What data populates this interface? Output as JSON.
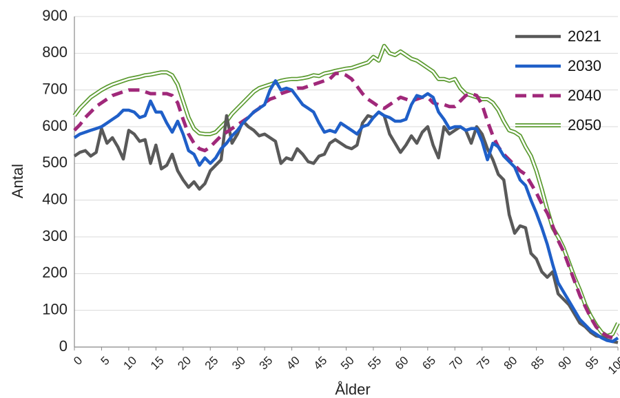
{
  "chart_data": {
    "type": "line",
    "title": "",
    "xlabel": "Ålder",
    "ylabel": "Antal",
    "xlim": [
      0,
      100
    ],
    "ylim": [
      0,
      900
    ],
    "y_ticks": [
      "0",
      "100",
      "200",
      "300",
      "400",
      "500",
      "600",
      "700",
      "800",
      "900"
    ],
    "x_ticks": [
      "0",
      "5",
      "10",
      "15",
      "20",
      "25",
      "30",
      "35",
      "40",
      "45",
      "50",
      "55",
      "60",
      "65",
      "70",
      "75",
      "80",
      "85",
      "90",
      "95",
      "100"
    ],
    "grid": "horizontal",
    "legend_position": "top-right",
    "series": [
      {
        "name": "2021",
        "color": "#595959",
        "style": "solid",
        "x": [
          0,
          1,
          2,
          3,
          4,
          5,
          6,
          7,
          8,
          9,
          10,
          11,
          12,
          13,
          14,
          15,
          16,
          17,
          18,
          19,
          20,
          21,
          22,
          23,
          24,
          25,
          26,
          27,
          28,
          29,
          30,
          31,
          32,
          33,
          34,
          35,
          36,
          37,
          38,
          39,
          40,
          41,
          42,
          43,
          44,
          45,
          46,
          47,
          48,
          49,
          50,
          51,
          52,
          53,
          54,
          55,
          56,
          57,
          58,
          59,
          60,
          61,
          62,
          63,
          64,
          65,
          66,
          67,
          68,
          69,
          70,
          71,
          72,
          73,
          74,
          75,
          76,
          77,
          78,
          79,
          80,
          81,
          82,
          83,
          84,
          85,
          86,
          87,
          88,
          89,
          90,
          91,
          92,
          93,
          94,
          95,
          96,
          97,
          98,
          99,
          100
        ],
        "values": [
          520,
          530,
          535,
          520,
          530,
          595,
          555,
          570,
          545,
          512,
          590,
          580,
          560,
          565,
          500,
          550,
          485,
          495,
          525,
          480,
          455,
          435,
          450,
          430,
          445,
          480,
          495,
          510,
          630,
          555,
          580,
          615,
          600,
          590,
          575,
          580,
          570,
          560,
          500,
          515,
          510,
          540,
          525,
          505,
          500,
          520,
          525,
          555,
          565,
          555,
          545,
          540,
          550,
          610,
          630,
          625,
          640,
          630,
          580,
          555,
          530,
          550,
          575,
          555,
          585,
          600,
          550,
          515,
          600,
          580,
          590,
          600,
          590,
          555,
          600,
          580,
          540,
          510,
          470,
          455,
          360,
          310,
          330,
          325,
          255,
          240,
          205,
          190,
          205,
          145,
          130,
          115,
          90,
          65,
          55,
          40,
          30,
          28,
          20,
          15,
          12
        ]
      },
      {
        "name": "2030",
        "color": "#1f5fc8",
        "style": "solid",
        "x": [
          0,
          1,
          2,
          3,
          4,
          5,
          6,
          7,
          8,
          9,
          10,
          11,
          12,
          13,
          14,
          15,
          16,
          17,
          18,
          19,
          20,
          21,
          22,
          23,
          24,
          25,
          26,
          27,
          28,
          29,
          30,
          31,
          32,
          33,
          34,
          35,
          36,
          37,
          38,
          39,
          40,
          41,
          42,
          43,
          44,
          45,
          46,
          47,
          48,
          49,
          50,
          51,
          52,
          53,
          54,
          55,
          56,
          57,
          58,
          59,
          60,
          61,
          62,
          63,
          64,
          65,
          66,
          67,
          68,
          69,
          70,
          71,
          72,
          73,
          74,
          75,
          76,
          77,
          78,
          79,
          80,
          81,
          82,
          83,
          84,
          85,
          86,
          87,
          88,
          89,
          90,
          91,
          92,
          93,
          94,
          95,
          96,
          97,
          98,
          99,
          100
        ],
        "values": [
          570,
          580,
          585,
          590,
          595,
          600,
          610,
          620,
          630,
          645,
          645,
          640,
          625,
          630,
          670,
          640,
          640,
          610,
          585,
          615,
          580,
          535,
          525,
          495,
          515,
          500,
          515,
          540,
          555,
          575,
          590,
          610,
          625,
          640,
          650,
          660,
          700,
          725,
          700,
          705,
          700,
          680,
          660,
          650,
          640,
          610,
          585,
          590,
          585,
          610,
          600,
          590,
          580,
          600,
          605,
          625,
          640,
          630,
          625,
          615,
          615,
          620,
          660,
          685,
          680,
          690,
          680,
          640,
          620,
          595,
          600,
          600,
          590,
          595,
          595,
          560,
          510,
          555,
          545,
          520,
          505,
          490,
          455,
          440,
          400,
          365,
          325,
          280,
          225,
          175,
          150,
          125,
          100,
          75,
          60,
          45,
          35,
          25,
          18,
          15,
          25
        ]
      },
      {
        "name": "2040",
        "color": "#a0287a",
        "style": "dashed",
        "x": [
          0,
          1,
          2,
          3,
          4,
          5,
          6,
          7,
          8,
          9,
          10,
          11,
          12,
          13,
          14,
          15,
          16,
          17,
          18,
          19,
          20,
          21,
          22,
          23,
          24,
          25,
          26,
          27,
          28,
          29,
          30,
          31,
          32,
          33,
          34,
          35,
          36,
          37,
          38,
          39,
          40,
          41,
          42,
          43,
          44,
          45,
          46,
          47,
          48,
          49,
          50,
          51,
          52,
          53,
          54,
          55,
          56,
          57,
          58,
          59,
          60,
          61,
          62,
          63,
          64,
          65,
          66,
          67,
          68,
          69,
          70,
          71,
          72,
          73,
          74,
          75,
          76,
          77,
          78,
          79,
          80,
          81,
          82,
          83,
          84,
          85,
          86,
          87,
          88,
          89,
          90,
          91,
          92,
          93,
          94,
          95,
          96,
          97,
          98,
          99,
          100
        ],
        "values": [
          590,
          605,
          625,
          640,
          655,
          665,
          675,
          685,
          690,
          695,
          700,
          700,
          700,
          695,
          690,
          690,
          690,
          690,
          685,
          665,
          620,
          580,
          555,
          540,
          535,
          545,
          560,
          575,
          585,
          595,
          605,
          615,
          625,
          640,
          650,
          665,
          675,
          680,
          690,
          695,
          700,
          705,
          705,
          710,
          715,
          720,
          725,
          730,
          745,
          745,
          740,
          730,
          710,
          690,
          675,
          665,
          655,
          650,
          660,
          670,
          680,
          675,
          670,
          675,
          680,
          680,
          665,
          660,
          660,
          655,
          655,
          670,
          685,
          690,
          685,
          660,
          615,
          575,
          545,
          525,
          510,
          495,
          480,
          470,
          445,
          420,
          390,
          365,
          330,
          290,
          260,
          220,
          180,
          140,
          110,
          80,
          55,
          40,
          30,
          25,
          35
        ]
      },
      {
        "name": "2050",
        "color": "#5a9a2f",
        "style": "double",
        "x": [
          0,
          1,
          2,
          3,
          4,
          5,
          6,
          7,
          8,
          9,
          10,
          11,
          12,
          13,
          14,
          15,
          16,
          17,
          18,
          19,
          20,
          21,
          22,
          23,
          24,
          25,
          26,
          27,
          28,
          29,
          30,
          31,
          32,
          33,
          34,
          35,
          36,
          37,
          38,
          39,
          40,
          41,
          42,
          43,
          44,
          45,
          46,
          47,
          48,
          49,
          50,
          51,
          52,
          53,
          54,
          55,
          56,
          57,
          58,
          59,
          60,
          61,
          62,
          63,
          64,
          65,
          66,
          67,
          68,
          69,
          70,
          71,
          72,
          73,
          74,
          75,
          76,
          77,
          78,
          79,
          80,
          81,
          82,
          83,
          84,
          85,
          86,
          87,
          88,
          89,
          90,
          91,
          92,
          93,
          94,
          95,
          96,
          97,
          98,
          99,
          100
        ],
        "values": [
          630,
          650,
          665,
          680,
          690,
          700,
          708,
          715,
          720,
          725,
          730,
          733,
          736,
          740,
          742,
          745,
          748,
          748,
          740,
          715,
          670,
          625,
          595,
          582,
          580,
          580,
          585,
          600,
          615,
          635,
          650,
          665,
          680,
          695,
          705,
          710,
          715,
          720,
          725,
          728,
          730,
          730,
          732,
          735,
          740,
          738,
          745,
          748,
          752,
          755,
          758,
          760,
          765,
          770,
          775,
          790,
          780,
          820,
          800,
          795,
          805,
          795,
          785,
          780,
          770,
          760,
          750,
          730,
          730,
          725,
          730,
          705,
          690,
          685,
          680,
          675,
          675,
          665,
          645,
          615,
          590,
          585,
          575,
          545,
          520,
          480,
          430,
          375,
          325,
          300,
          270,
          230,
          190,
          155,
          115,
          85,
          60,
          40,
          30,
          35,
          65
        ]
      }
    ]
  }
}
